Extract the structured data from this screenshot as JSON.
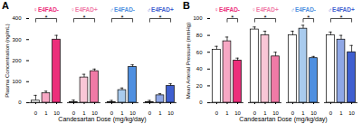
{
  "chart_data": [
    {
      "type": "bar",
      "title": "A",
      "x_label": "Candesartan Dose (mg/kg/day)",
      "y_label": "Plasma Concentration (ng/mL)",
      "categories": [
        "0",
        "1",
        "10"
      ],
      "ylim": [
        0,
        400
      ],
      "yticks": [
        0,
        100,
        200,
        300,
        400
      ],
      "series": [
        {
          "name": "♀E4FAD-",
          "color": "#ec2f7b",
          "colors": [
            "#ffffff",
            "#f7a8c4",
            "#ec2f7b"
          ],
          "values": [
            10,
            45,
            300
          ],
          "errors": [
            25,
            10,
            20
          ]
        },
        {
          "name": "♀E4FAD+",
          "color": "#f07aa6",
          "colors": [
            "#ffffff",
            "#f9c6d6",
            "#f07aa6"
          ],
          "values": [
            3,
            120,
            150
          ],
          "errors": [
            10,
            15,
            10
          ]
        },
        {
          "name": "♂E4FAD-",
          "color": "#4e8fe0",
          "colors": [
            "#ffffff",
            "#a9cbee",
            "#4e8fe0"
          ],
          "values": [
            3,
            60,
            170
          ],
          "errors": [
            8,
            10,
            10
          ]
        },
        {
          "name": "♂E4FAD+",
          "color": "#3f5fd0",
          "colors": [
            "#ffffff",
            "#8fa7e6",
            "#3f5fd0"
          ],
          "values": [
            3,
            35,
            80
          ],
          "errors": [
            8,
            8,
            10
          ]
        }
      ],
      "significance": [
        {
          "group": "♀E4FAD-",
          "from": "0",
          "to": "10",
          "label": "*"
        },
        {
          "group": "♀E4FAD+",
          "from": "0",
          "to": "10",
          "label": "*"
        },
        {
          "group": "♂E4FAD-",
          "from": "0",
          "to": "10",
          "label": "*"
        },
        {
          "group": "♂E4FAD+",
          "from": "0",
          "to": "10",
          "label": "*"
        }
      ]
    },
    {
      "type": "bar",
      "title": "B",
      "x_label": "Candesartan Dose (mg/kg/day)",
      "y_label": "Mean Arterial Pressure (mmHg)",
      "categories": [
        "0",
        "1",
        "10"
      ],
      "ylim": [
        0,
        100
      ],
      "yticks": [
        0,
        20,
        40,
        60,
        80,
        100
      ],
      "series": [
        {
          "name": "♀E4FAD-",
          "color": "#ec2f7b",
          "colors": [
            "#ffffff",
            "#f7a8c4",
            "#ec2f7b"
          ],
          "values": [
            63,
            73,
            50
          ],
          "errors": [
            4,
            5,
            3
          ]
        },
        {
          "name": "♀E4FAD+",
          "color": "#f07aa6",
          "colors": [
            "#ffffff",
            "#f9c6d6",
            "#f07aa6"
          ],
          "values": [
            87,
            80,
            55
          ],
          "errors": [
            3,
            5,
            5
          ]
        },
        {
          "name": "♂E4FAD-",
          "color": "#4e8fe0",
          "colors": [
            "#ffffff",
            "#a9cbee",
            "#4e8fe0"
          ],
          "values": [
            80,
            88,
            53
          ],
          "errors": [
            5,
            4,
            2
          ]
        },
        {
          "name": "♂E4FAD+",
          "color": "#3f5fd0",
          "colors": [
            "#ffffff",
            "#8fa7e6",
            "#3f5fd0"
          ],
          "values": [
            80,
            75,
            60
          ],
          "errors": [
            4,
            5,
            8
          ]
        }
      ],
      "significance": [
        {
          "group": "♀E4FAD-",
          "from": "1",
          "to": "10",
          "label": "*"
        },
        {
          "group": "♀E4FAD+",
          "from": "0",
          "to": "10",
          "label": "*"
        },
        {
          "group": "♂E4FAD-",
          "from": "1",
          "to": "10",
          "label": "*"
        },
        {
          "group": "♂E4FAD+",
          "from": "0",
          "to": "10",
          "label": "*"
        }
      ]
    }
  ]
}
